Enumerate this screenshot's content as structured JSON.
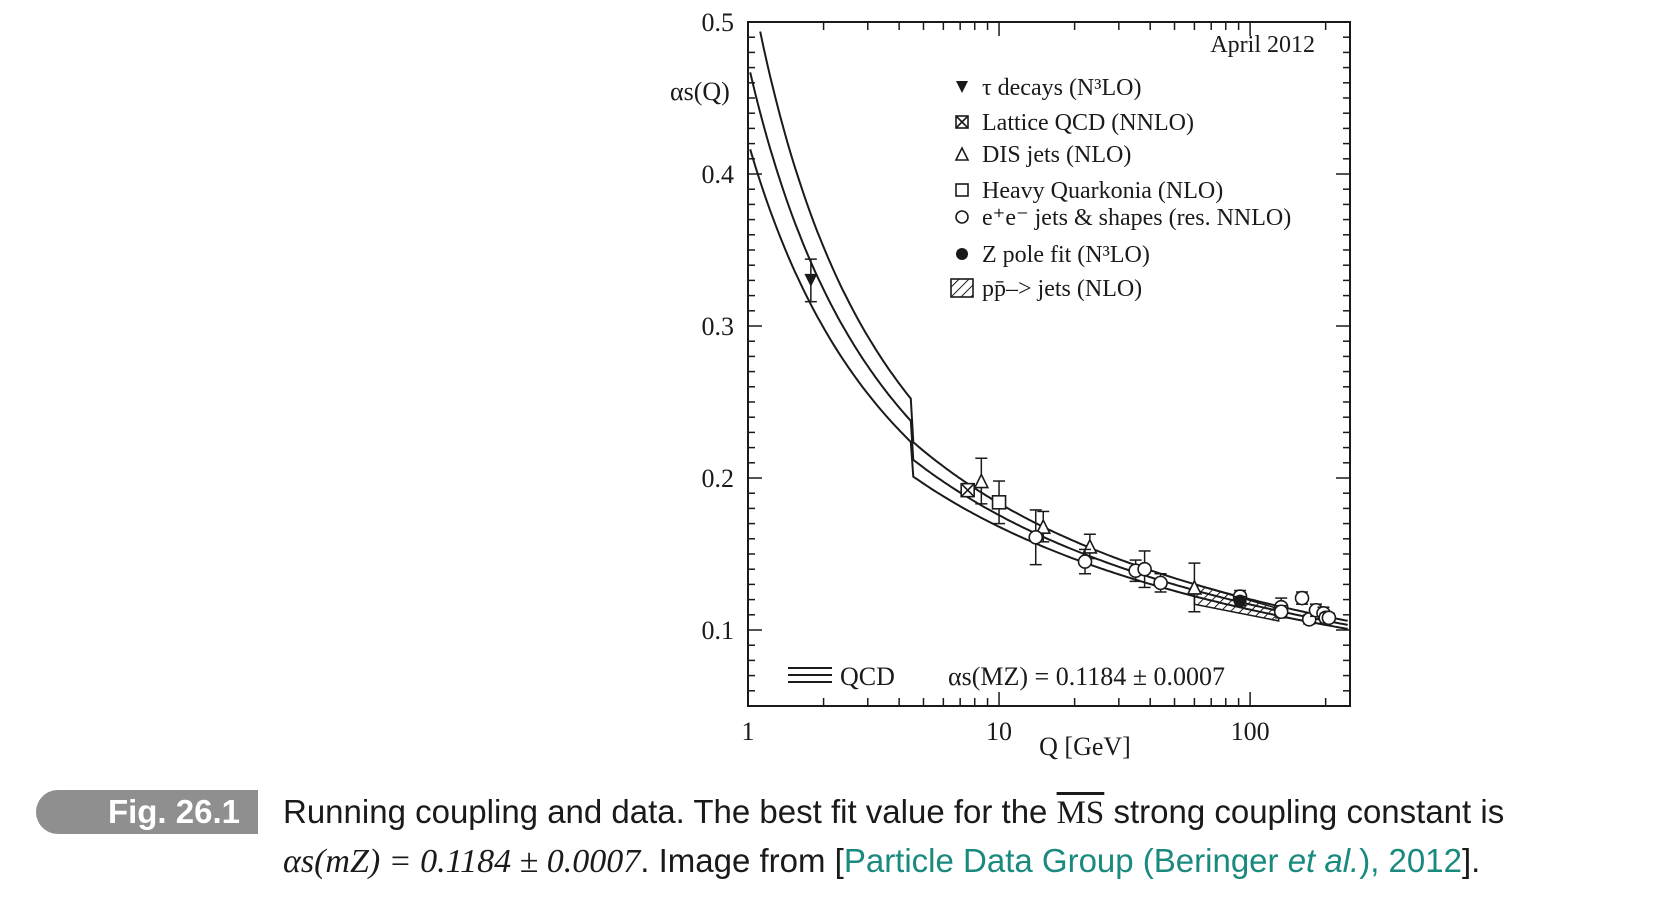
{
  "chart_data": {
    "type": "scatter",
    "xscale": "log",
    "xlim": [
      1,
      250
    ],
    "ylim": [
      0.05,
      0.5
    ],
    "xlabel": "Q [GeV]",
    "ylabel": "αs(Q)",
    "x_ticks": [
      1,
      10,
      100
    ],
    "y_ticks": [
      0.1,
      0.2,
      0.3,
      0.4,
      0.5
    ],
    "annotation": "April 2012",
    "qcd_curves": {
      "label": "QCD",
      "central": 0.1184,
      "band": 0.0007,
      "text": "αs(MZ) = 0.1184 ± 0.0007"
    },
    "legend_title_placement": "top-right",
    "legend": [
      {
        "marker": "triangle-down-filled",
        "label": "τ decays (N³LO)"
      },
      {
        "marker": "square-x",
        "label": "Lattice QCD (NNLO)"
      },
      {
        "marker": "triangle-open",
        "label": "DIS jets (NLO)"
      },
      {
        "marker": "square-open",
        "label": "Heavy Quarkonia (NLO)"
      },
      {
        "marker": "circle-open",
        "label": "e⁺e⁻ jets & shapes (res. NNLO)"
      },
      {
        "marker": "circle-filled",
        "label": "Z pole fit (N³LO)"
      },
      {
        "marker": "hatched-box",
        "label": "pp̄–> jets (NLO)"
      }
    ],
    "series": [
      {
        "marker": "triangle-down-filled",
        "points": [
          {
            "x": 1.78,
            "y": 0.33,
            "err": 0.014
          }
        ]
      },
      {
        "marker": "square-x",
        "points": [
          {
            "x": 7.5,
            "y": 0.192,
            "err": 0.002
          }
        ]
      },
      {
        "marker": "triangle-open",
        "points": [
          {
            "x": 8.5,
            "y": 0.198,
            "err": 0.015
          },
          {
            "x": 15,
            "y": 0.168,
            "err": 0.01
          },
          {
            "x": 23,
            "y": 0.155,
            "err": 0.008
          },
          {
            "x": 60,
            "y": 0.128,
            "err": 0.016
          }
        ]
      },
      {
        "marker": "square-open",
        "points": [
          {
            "x": 10,
            "y": 0.184,
            "err": 0.014
          }
        ]
      },
      {
        "marker": "circle-open",
        "points": [
          {
            "x": 14,
            "y": 0.161,
            "err": 0.018
          },
          {
            "x": 22,
            "y": 0.145,
            "err": 0.008
          },
          {
            "x": 35,
            "y": 0.139,
            "err": 0.007
          },
          {
            "x": 38,
            "y": 0.14,
            "err": 0.012
          },
          {
            "x": 44,
            "y": 0.131,
            "err": 0.006
          },
          {
            "x": 91.2,
            "y": 0.122,
            "err": 0.004
          },
          {
            "x": 133,
            "y": 0.115,
            "err": 0.006
          },
          {
            "x": 133,
            "y": 0.112,
            "err": 0.004
          },
          {
            "x": 161,
            "y": 0.121,
            "err": 0.004
          },
          {
            "x": 172,
            "y": 0.107,
            "err": 0.003
          },
          {
            "x": 183,
            "y": 0.113,
            "err": 0.004
          },
          {
            "x": 196,
            "y": 0.111,
            "err": 0.004
          },
          {
            "x": 200,
            "y": 0.108,
            "err": 0.003
          },
          {
            "x": 206,
            "y": 0.108,
            "err": 0.003
          }
        ]
      },
      {
        "marker": "circle-filled",
        "points": [
          {
            "x": 91.2,
            "y": 0.119,
            "err": 0.003
          }
        ]
      },
      {
        "marker": "hatched-box",
        "region": [
          [
            60,
            0.13
          ],
          [
            130,
            0.114
          ],
          [
            130,
            0.106
          ],
          [
            60,
            0.117
          ]
        ]
      }
    ]
  },
  "caption": {
    "tag": "Fig. 26.1",
    "line1_before": "Running coupling and data. The best fit value for the ",
    "ms_bar": "MS",
    "line1_after": " strong coupling constant is",
    "line2_math": "αs(mZ) = 0.1184 ± 0.0007",
    "line2_mid": ". Image from [",
    "cite_main": "Particle Data Group (Beringer ",
    "cite_etal": "et al.",
    "cite_end": "), 2012",
    "line2_end": "]."
  }
}
